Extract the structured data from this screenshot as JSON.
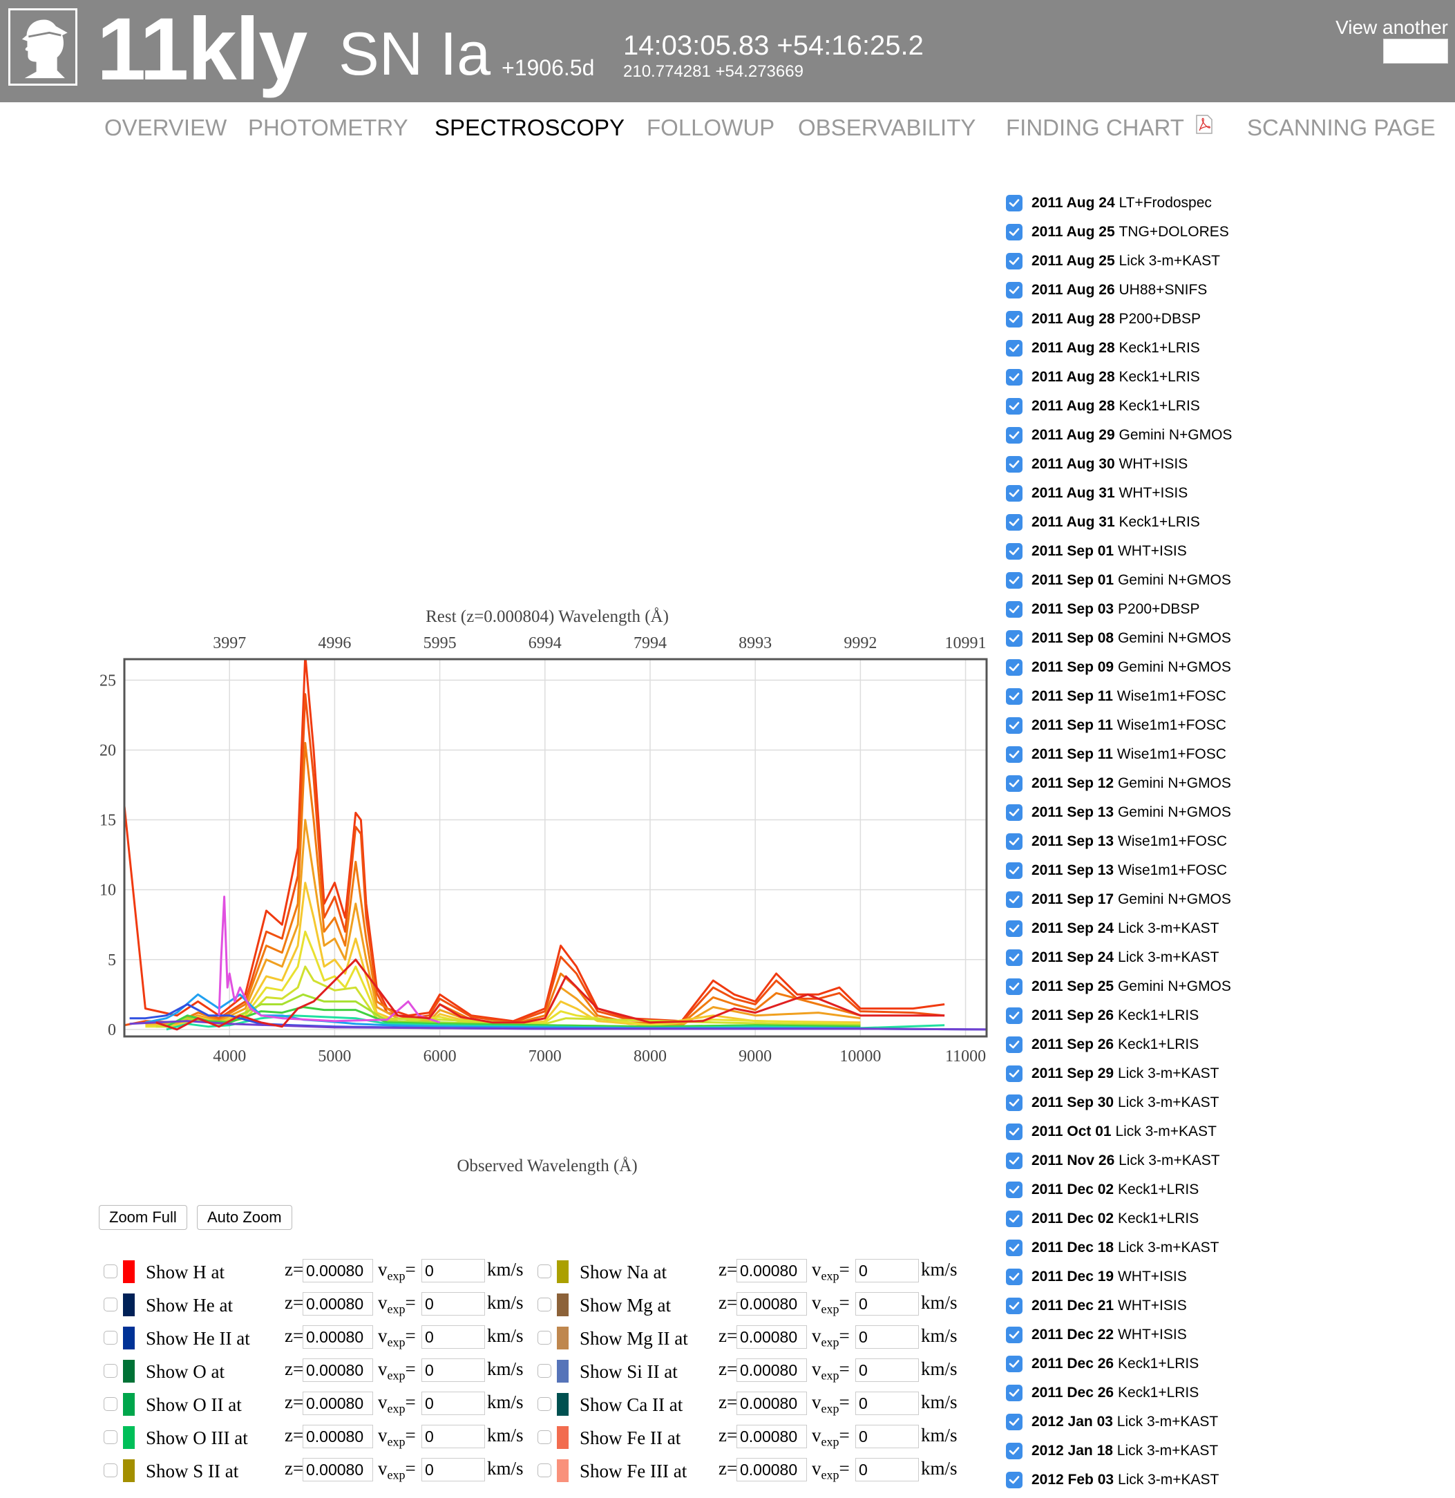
{
  "header": {
    "name": "11kly",
    "type": "SN Ia",
    "phase": "+1906.5d",
    "coords_sex": "14:03:05.83 +54:16:25.2",
    "coords_deg": "210.774281 +54.273669",
    "view_another": "View another"
  },
  "nav": {
    "tabs": [
      {
        "label": "OVERVIEW"
      },
      {
        "label": "PHOTOMETRY"
      },
      {
        "label": "SPECTROSCOPY"
      },
      {
        "label": "FOLLOWUP"
      },
      {
        "label": "OBSERVABILITY"
      },
      {
        "label": "FINDING CHART"
      },
      {
        "label": "SCANNING PAGE"
      }
    ],
    "active": "SPECTROSCOPY"
  },
  "chart_data": {
    "type": "line",
    "title": "Rest (z=0.000804) Wavelength (Å)",
    "xlabel": "Observed Wavelength (Å)",
    "ylabel": "",
    "xlim": [
      3000,
      11200
    ],
    "ylim": [
      -0.5,
      26.5
    ],
    "x_ticks": [
      4000,
      5000,
      6000,
      7000,
      8000,
      9000,
      10000,
      11000
    ],
    "x2_ticks": [
      3997,
      4996,
      5995,
      6994,
      7994,
      8993,
      9992,
      10991
    ],
    "y_ticks": [
      0,
      5,
      10,
      15,
      20,
      25
    ],
    "grid": true,
    "series": [
      {
        "color": "#f03a10",
        "x": [
          3000,
          3200,
          3500,
          3700,
          3900,
          4150,
          4350,
          4500,
          4650,
          4720,
          4800,
          4900,
          5000,
          5100,
          5200,
          5250,
          5300,
          5400,
          5500,
          5700,
          5900,
          6000,
          6300,
          6700,
          7000,
          7150,
          7300,
          7500,
          7800,
          8300,
          8600,
          8800,
          9000,
          9200,
          9400,
          9600,
          9800,
          10000,
          10500,
          10800
        ],
        "y": [
          16,
          1.5,
          1,
          2,
          1,
          2.5,
          8.5,
          7.5,
          13,
          26.8,
          20,
          9,
          10.5,
          8,
          15.5,
          15,
          9,
          3,
          1.5,
          1,
          1.2,
          2.5,
          1,
          0.6,
          1.5,
          6,
          4.5,
          1.5,
          0.8,
          0.6,
          3.5,
          2.5,
          2,
          4,
          2.5,
          2.5,
          3,
          1.5,
          1.5,
          1.8
        ]
      },
      {
        "color": "#f05010",
        "x": [
          3000,
          3200,
          3500,
          3700,
          3900,
          4150,
          4350,
          4500,
          4650,
          4720,
          4800,
          4900,
          5000,
          5100,
          5200,
          5250,
          5300,
          5400,
          5500,
          5700,
          5900,
          6000,
          6300,
          6700,
          7000,
          7150,
          7300,
          7500,
          7800,
          8300,
          8600,
          8800,
          9000,
          9200,
          9400,
          9600,
          9800,
          10000,
          10500,
          10800
        ],
        "y": [
          0.3,
          0.6,
          0.5,
          1.2,
          0.8,
          2,
          7,
          6.5,
          11,
          24,
          18,
          8,
          9.5,
          7,
          14.5,
          14,
          8,
          2.6,
          1.2,
          0.8,
          1,
          2.2,
          0.9,
          0.5,
          1.3,
          5.2,
          4,
          1.3,
          0.7,
          0.5,
          3,
          2.2,
          1.8,
          3.5,
          2.2,
          2.2,
          2.6,
          1.3,
          1.2,
          1
        ]
      },
      {
        "color": "#f07a10",
        "x": [
          3200,
          3500,
          3700,
          3900,
          4150,
          4350,
          4500,
          4650,
          4720,
          4800,
          4900,
          5000,
          5100,
          5200,
          5300,
          5400,
          5600,
          5900,
          6000,
          6300,
          6700,
          7000,
          7150,
          7300,
          7500,
          7800,
          8300,
          8600,
          8800,
          9000,
          9200,
          9600,
          10000
        ],
        "y": [
          0.5,
          0.5,
          1.2,
          0.7,
          1.8,
          6,
          5.5,
          9,
          20.5,
          15,
          7,
          8,
          6,
          12,
          6.5,
          2,
          1,
          0.8,
          1.8,
          0.7,
          0.4,
          1,
          4,
          3,
          1,
          0.5,
          0.4,
          2.3,
          1.8,
          1.4,
          2.6,
          1.8,
          1
        ]
      },
      {
        "color": "#f0a020",
        "x": [
          3200,
          3500,
          3700,
          3900,
          4150,
          4350,
          4500,
          4650,
          4720,
          4800,
          4900,
          5000,
          5100,
          5200,
          5300,
          5400,
          5600,
          5900,
          6000,
          6300,
          6700,
          7000,
          7150,
          7300,
          7500,
          7800,
          8300,
          8600,
          9000,
          9600,
          10000
        ],
        "y": [
          0.4,
          0.4,
          1,
          0.6,
          1.5,
          5,
          4.5,
          7.5,
          15,
          11,
          6,
          6.5,
          5,
          9,
          5,
          1.6,
          0.8,
          0.6,
          1.4,
          0.6,
          0.3,
          0.8,
          3,
          2.2,
          0.8,
          0.4,
          0.3,
          1.6,
          1,
          1.2,
          0.8
        ]
      },
      {
        "color": "#f5c830",
        "x": [
          3200,
          3500,
          3700,
          3900,
          4150,
          4350,
          4500,
          4650,
          4720,
          4800,
          4900,
          5000,
          5100,
          5200,
          5300,
          5400,
          5600,
          5900,
          6000,
          6300,
          6700,
          7000,
          7150,
          7300,
          7500,
          8000,
          8600,
          9000,
          10000
        ],
        "y": [
          0.3,
          0.3,
          0.9,
          0.5,
          1.2,
          3.8,
          3.5,
          6,
          10.5,
          8,
          4.5,
          5,
          4,
          6.5,
          3.8,
          1.2,
          0.6,
          0.5,
          1.1,
          0.5,
          0.3,
          0.6,
          2,
          1.5,
          0.6,
          0.3,
          1,
          0.6,
          0.5
        ]
      },
      {
        "color": "#e8e030",
        "x": [
          3200,
          3500,
          3700,
          3900,
          4150,
          4350,
          4500,
          4650,
          4720,
          4800,
          4900,
          5000,
          5100,
          5200,
          5300,
          5400,
          5600,
          6000,
          6300,
          7000,
          7150,
          7300,
          8000,
          8600,
          10000
        ],
        "y": [
          0.2,
          0.2,
          0.8,
          0.4,
          1,
          3,
          2.8,
          4.5,
          7,
          5.5,
          3.5,
          3.8,
          3,
          4.5,
          2.8,
          1,
          0.5,
          0.9,
          0.4,
          0.5,
          1.3,
          1,
          0.3,
          0.7,
          0.4
        ]
      },
      {
        "color": "#d0e030",
        "x": [
          3300,
          3500,
          3700,
          3900,
          4150,
          4350,
          4500,
          4650,
          4720,
          4800,
          5000,
          5200,
          5400,
          6000,
          7000,
          7200,
          8600,
          10000
        ],
        "y": [
          0.2,
          0.2,
          0.7,
          0.4,
          0.8,
          2.3,
          2.2,
          3,
          4.5,
          3.5,
          2.8,
          3,
          0.8,
          0.7,
          0.4,
          0.8,
          0.5,
          0.3
        ]
      },
      {
        "color": "#a8e030",
        "x": [
          3400,
          3600,
          3800,
          4000,
          4300,
          4500,
          4700,
          4900,
          5200,
          5500,
          6000,
          7000,
          8000,
          9000,
          10000
        ],
        "y": [
          0.3,
          0.8,
          0.5,
          0.6,
          1.8,
          1.8,
          2.5,
          2,
          2,
          0.6,
          0.5,
          0.3,
          0.2,
          0.3,
          0.3
        ]
      },
      {
        "color": "#40d040",
        "x": [
          3400,
          3600,
          3800,
          4000,
          4300,
          4500,
          4700,
          4900,
          5200,
          5500,
          6000,
          7000,
          8000,
          9000,
          10000
        ],
        "y": [
          0.2,
          1,
          0.6,
          0.5,
          1.3,
          1.2,
          1.6,
          1.4,
          1.4,
          0.5,
          0.4,
          0.3,
          0.2,
          0.3,
          0.2
        ]
      },
      {
        "color": "#20e0a0",
        "x": [
          3400,
          3600,
          3800,
          4000,
          4300,
          4600,
          4900,
          5200,
          5500,
          6000,
          7000,
          8000,
          9000,
          10000,
          10800
        ],
        "y": [
          0,
          0.4,
          0.2,
          0.3,
          0.8,
          1,
          0.9,
          0.8,
          0.4,
          0.3,
          0.2,
          0.1,
          0.2,
          0.1,
          0.3
        ]
      },
      {
        "color": "#20a0f0",
        "x": [
          3200,
          3400,
          3500,
          3700,
          3900,
          4100,
          4300,
          4500,
          4700,
          4900,
          5200,
          5500,
          6000,
          7000,
          8000,
          9000,
          10000
        ],
        "y": [
          0.5,
          0.8,
          1.2,
          2.5,
          1.5,
          2.5,
          1,
          1,
          0.7,
          0.6,
          0.4,
          0.3,
          0.2,
          0.15,
          0.1,
          0.1,
          0.1
        ]
      },
      {
        "color": "#3050e0",
        "x": [
          3050,
          3200,
          3400,
          3600,
          3800,
          4000,
          4300,
          4600,
          5000,
          6000,
          7000,
          8000,
          9000,
          10000,
          11200
        ],
        "y": [
          0.8,
          0.8,
          1,
          1.8,
          1,
          1,
          0.4,
          0.3,
          0.2,
          0.1,
          0.05,
          0.05,
          0.05,
          0.05,
          0
        ]
      },
      {
        "color": "#7040d0",
        "x": [
          3050,
          3300,
          3600,
          4000,
          5000,
          6000,
          7000,
          8000,
          9000,
          10000,
          11200
        ],
        "y": [
          0.4,
          0.5,
          0.6,
          0.4,
          0.15,
          0.1,
          0.05,
          0.05,
          0.05,
          0.05,
          0
        ]
      },
      {
        "color": "#e050e0",
        "x": [
          3900,
          3920,
          3950,
          3980,
          4000,
          4050,
          4100,
          4200,
          4300,
          4500,
          5000,
          5500,
          5700,
          5800,
          6000
        ],
        "y": [
          1,
          5,
          9.5,
          3,
          4,
          2,
          3,
          1.5,
          1,
          0.8,
          0.6,
          0.7,
          2,
          1,
          0.5
        ]
      },
      {
        "color": "#e02020",
        "x": [
          3300,
          3500,
          3700,
          3900,
          4100,
          4300,
          4500,
          4650,
          4800,
          5000,
          5200,
          5400,
          5600,
          5900,
          6000,
          6200,
          6500,
          6800,
          7000,
          7200,
          7500,
          8000,
          8500,
          8800,
          9000,
          9500,
          10000,
          10800
        ],
        "y": [
          0.5,
          0,
          0.8,
          0.2,
          1,
          0.5,
          0.2,
          1.5,
          2,
          3.5,
          5,
          3,
          1,
          0.8,
          1.8,
          0.9,
          0.5,
          0.5,
          0.8,
          3.8,
          1.5,
          0.5,
          0.6,
          1.5,
          1.2,
          2.5,
          1,
          1
        ]
      }
    ]
  },
  "buttons": {
    "zoom_full": "Zoom Full",
    "auto_zoom": "Auto Zoom"
  },
  "lines": {
    "z_label": "z=",
    "v_main": "v",
    "v_sub": "exp",
    "v_eq": "=",
    "kms": "km/s",
    "left": [
      {
        "label": "Show H at",
        "color": "#ff0000",
        "z": "0.00080",
        "v": "0"
      },
      {
        "label": "Show He at",
        "color": "#002157",
        "z": "0.00080",
        "v": "0"
      },
      {
        "label": "Show He II at",
        "color": "#003296",
        "z": "0.00080",
        "v": "0"
      },
      {
        "label": "Show O at",
        "color": "#007236",
        "z": "0.00080",
        "v": "0"
      },
      {
        "label": "Show O II at",
        "color": "#00a64c",
        "z": "0.00080",
        "v": "0"
      },
      {
        "label": "Show O III at",
        "color": "#00bf59",
        "z": "0.00080",
        "v": "0"
      },
      {
        "label": "Show S II at",
        "color": "#a38f00",
        "z": "0.00080",
        "v": "0"
      }
    ],
    "right": [
      {
        "label": "Show Na at",
        "color": "#aba000",
        "z": "0.00080",
        "v": "0"
      },
      {
        "label": "Show Mg at",
        "color": "#8c6239",
        "z": "0.00080",
        "v": "0"
      },
      {
        "label": "Show Mg II at",
        "color": "#bf874e",
        "z": "0.00080",
        "v": "0"
      },
      {
        "label": "Show Si II at",
        "color": "#5674b9",
        "z": "0.00080",
        "v": "0"
      },
      {
        "label": "Show Ca II at",
        "color": "#005050",
        "z": "0.00080",
        "v": "0"
      },
      {
        "label": "Show Fe II at",
        "color": "#f26c4f",
        "z": "0.00080",
        "v": "0"
      },
      {
        "label": "Show Fe III at",
        "color": "#f9917b",
        "z": "0.00080",
        "v": "0"
      }
    ]
  },
  "spectra": [
    {
      "date": "2011 Aug 24",
      "inst": "LT+Frodospec"
    },
    {
      "date": "2011 Aug 25",
      "inst": "TNG+DOLORES"
    },
    {
      "date": "2011 Aug 25",
      "inst": "Lick 3-m+KAST"
    },
    {
      "date": "2011 Aug 26",
      "inst": "UH88+SNIFS"
    },
    {
      "date": "2011 Aug 28",
      "inst": "P200+DBSP"
    },
    {
      "date": "2011 Aug 28",
      "inst": "Keck1+LRIS"
    },
    {
      "date": "2011 Aug 28",
      "inst": "Keck1+LRIS"
    },
    {
      "date": "2011 Aug 28",
      "inst": "Keck1+LRIS"
    },
    {
      "date": "2011 Aug 29",
      "inst": "Gemini N+GMOS"
    },
    {
      "date": "2011 Aug 30",
      "inst": "WHT+ISIS"
    },
    {
      "date": "2011 Aug 31",
      "inst": "WHT+ISIS"
    },
    {
      "date": "2011 Aug 31",
      "inst": "Keck1+LRIS"
    },
    {
      "date": "2011 Sep 01",
      "inst": "WHT+ISIS"
    },
    {
      "date": "2011 Sep 01",
      "inst": "Gemini N+GMOS"
    },
    {
      "date": "2011 Sep 03",
      "inst": "P200+DBSP"
    },
    {
      "date": "2011 Sep 08",
      "inst": "Gemini N+GMOS"
    },
    {
      "date": "2011 Sep 09",
      "inst": "Gemini N+GMOS"
    },
    {
      "date": "2011 Sep 11",
      "inst": "Wise1m1+FOSC"
    },
    {
      "date": "2011 Sep 11",
      "inst": "Wise1m1+FOSC"
    },
    {
      "date": "2011 Sep 11",
      "inst": "Wise1m1+FOSC"
    },
    {
      "date": "2011 Sep 12",
      "inst": "Gemini N+GMOS"
    },
    {
      "date": "2011 Sep 13",
      "inst": "Gemini N+GMOS"
    },
    {
      "date": "2011 Sep 13",
      "inst": "Wise1m1+FOSC"
    },
    {
      "date": "2011 Sep 13",
      "inst": "Wise1m1+FOSC"
    },
    {
      "date": "2011 Sep 17",
      "inst": "Gemini N+GMOS"
    },
    {
      "date": "2011 Sep 24",
      "inst": "Lick 3-m+KAST"
    },
    {
      "date": "2011 Sep 24",
      "inst": "Lick 3-m+KAST"
    },
    {
      "date": "2011 Sep 25",
      "inst": "Gemini N+GMOS"
    },
    {
      "date": "2011 Sep 26",
      "inst": "Keck1+LRIS"
    },
    {
      "date": "2011 Sep 26",
      "inst": "Keck1+LRIS"
    },
    {
      "date": "2011 Sep 29",
      "inst": "Lick 3-m+KAST"
    },
    {
      "date": "2011 Sep 30",
      "inst": "Lick 3-m+KAST"
    },
    {
      "date": "2011 Oct 01",
      "inst": "Lick 3-m+KAST"
    },
    {
      "date": "2011 Nov 26",
      "inst": "Lick 3-m+KAST"
    },
    {
      "date": "2011 Dec 02",
      "inst": "Keck1+LRIS"
    },
    {
      "date": "2011 Dec 02",
      "inst": "Keck1+LRIS"
    },
    {
      "date": "2011 Dec 18",
      "inst": "Lick 3-m+KAST"
    },
    {
      "date": "2011 Dec 19",
      "inst": "WHT+ISIS"
    },
    {
      "date": "2011 Dec 21",
      "inst": "WHT+ISIS"
    },
    {
      "date": "2011 Dec 22",
      "inst": "WHT+ISIS"
    },
    {
      "date": "2011 Dec 26",
      "inst": "Keck1+LRIS"
    },
    {
      "date": "2011 Dec 26",
      "inst": "Keck1+LRIS"
    },
    {
      "date": "2012 Jan 03",
      "inst": "Lick 3-m+KAST"
    },
    {
      "date": "2012 Jan 18",
      "inst": "Lick 3-m+KAST"
    },
    {
      "date": "2012 Feb 03",
      "inst": "Lick 3-m+KAST"
    }
  ]
}
